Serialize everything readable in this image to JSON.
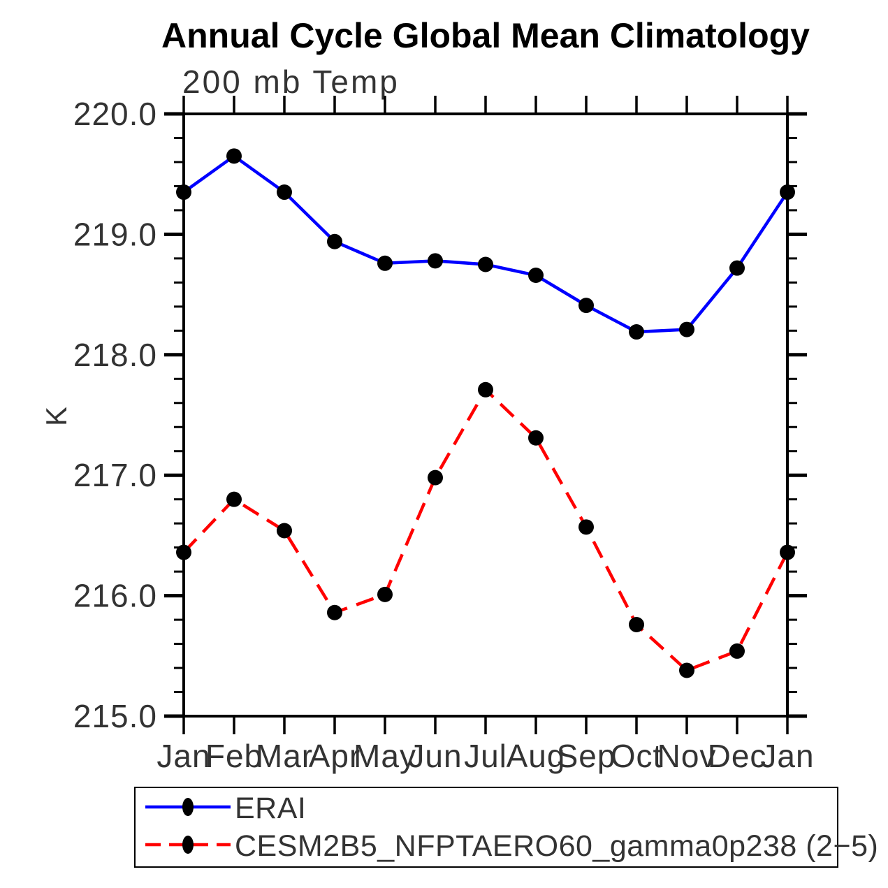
{
  "chart_data": {
    "type": "line",
    "title": "Annual Cycle Global Mean Climatology",
    "subtitle": "200 mb Temp",
    "ylabel": "K",
    "xlabel": "",
    "categories": [
      "Jan",
      "Feb",
      "Mar",
      "Apr",
      "May",
      "Jun",
      "Jul",
      "Aug",
      "Sep",
      "Oct",
      "Nov",
      "Dec",
      "Jan"
    ],
    "series": [
      {
        "name": "ERAI",
        "color": "#0000ff",
        "style": "solid",
        "marker": "circle",
        "marker_color": "#000000",
        "values": [
          219.35,
          219.65,
          219.35,
          218.94,
          218.76,
          218.78,
          218.75,
          218.66,
          218.41,
          218.19,
          218.21,
          218.72,
          219.35
        ]
      },
      {
        "name": "CESM2B5_NFPTAERO60_gamma0p238 (2−5)",
        "color": "#ff0000",
        "style": "dashed",
        "marker": "circle",
        "marker_color": "#000000",
        "values": [
          216.36,
          216.8,
          216.54,
          215.86,
          216.01,
          216.98,
          217.71,
          217.31,
          216.57,
          215.76,
          215.38,
          215.54,
          216.36
        ]
      }
    ],
    "ylim": [
      215.0,
      220.0
    ],
    "ytick_major": 1.0,
    "ytick_minor": 0.2,
    "ytick_label_format": "one_decimal",
    "grid": false,
    "legend_position": "bottom-left-box",
    "axis_color": "#000000"
  }
}
